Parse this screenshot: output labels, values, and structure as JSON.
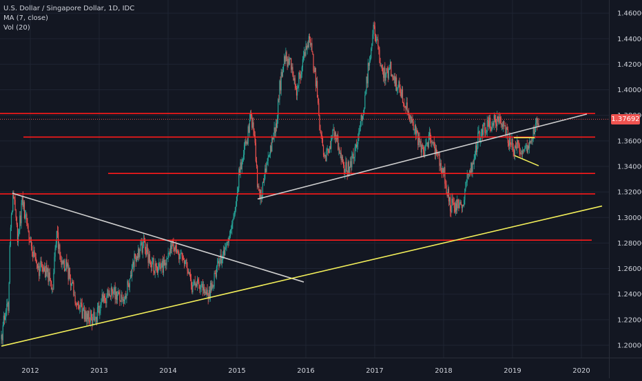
{
  "legend": {
    "symbol": "U.S. Dollar / Singapore Dollar, 1D, IDC",
    "ma": "MA (7, close)",
    "vol": "Vol (20)"
  },
  "colors": {
    "background": "#131722",
    "up": "#26a69a",
    "down": "#ef5350",
    "hline": "#ff1a1a",
    "trend_white": "#d0d0d0",
    "trend_yellow": "#f4f05a",
    "axis_text": "#d1d4dc"
  },
  "chart_data": {
    "type": "candlestick",
    "title": "U.S. Dollar / Singapore Dollar, 1D, IDC",
    "x_ticks": [
      "2012",
      "2013",
      "2014",
      "2015",
      "2016",
      "2017",
      "2018",
      "2019",
      "2020"
    ],
    "y_ticks": [
      "1.20000",
      "1.22000",
      "1.24000",
      "1.26000",
      "1.28000",
      "1.30000",
      "1.32000",
      "1.34000",
      "1.36000",
      "1.38000",
      "1.40000",
      "1.42000",
      "1.44000",
      "1.46000"
    ],
    "xlim": [
      2011.56,
      2020.4
    ],
    "ylim": [
      1.1903,
      1.4703
    ],
    "last_price": "1.37692",
    "price_path": [
      [
        2011.58,
        1.205
      ],
      [
        2011.62,
        1.222
      ],
      [
        2011.68,
        1.232
      ],
      [
        2011.72,
        1.305
      ],
      [
        2011.76,
        1.318
      ],
      [
        2011.82,
        1.282
      ],
      [
        2011.88,
        1.312
      ],
      [
        2011.95,
        1.296
      ],
      [
        2012.02,
        1.275
      ],
      [
        2012.1,
        1.258
      ],
      [
        2012.18,
        1.262
      ],
      [
        2012.25,
        1.255
      ],
      [
        2012.33,
        1.247
      ],
      [
        2012.38,
        1.288
      ],
      [
        2012.45,
        1.268
      ],
      [
        2012.52,
        1.262
      ],
      [
        2012.58,
        1.252
      ],
      [
        2012.65,
        1.236
      ],
      [
        2012.72,
        1.228
      ],
      [
        2012.8,
        1.224
      ],
      [
        2012.88,
        1.222
      ],
      [
        2012.95,
        1.222
      ],
      [
        2013.05,
        1.236
      ],
      [
        2013.12,
        1.24
      ],
      [
        2013.2,
        1.244
      ],
      [
        2013.28,
        1.238
      ],
      [
        2013.35,
        1.232
      ],
      [
        2013.42,
        1.248
      ],
      [
        2013.5,
        1.266
      ],
      [
        2013.58,
        1.274
      ],
      [
        2013.65,
        1.28
      ],
      [
        2013.72,
        1.268
      ],
      [
        2013.8,
        1.262
      ],
      [
        2013.88,
        1.258
      ],
      [
        2014.0,
        1.27
      ],
      [
        2014.05,
        1.282
      ],
      [
        2014.12,
        1.274
      ],
      [
        2014.2,
        1.268
      ],
      [
        2014.28,
        1.26
      ],
      [
        2014.35,
        1.246
      ],
      [
        2014.42,
        1.252
      ],
      [
        2014.5,
        1.246
      ],
      [
        2014.58,
        1.24
      ],
      [
        2014.65,
        1.248
      ],
      [
        2014.72,
        1.264
      ],
      [
        2014.8,
        1.27
      ],
      [
        2014.88,
        1.288
      ],
      [
        2014.95,
        1.3
      ],
      [
        2015.02,
        1.33
      ],
      [
        2015.1,
        1.35
      ],
      [
        2015.15,
        1.362
      ],
      [
        2015.2,
        1.38
      ],
      [
        2015.25,
        1.368
      ],
      [
        2015.3,
        1.322
      ],
      [
        2015.35,
        1.318
      ],
      [
        2015.42,
        1.34
      ],
      [
        2015.5,
        1.358
      ],
      [
        2015.58,
        1.376
      ],
      [
        2015.62,
        1.402
      ],
      [
        2015.7,
        1.425
      ],
      [
        2015.78,
        1.42
      ],
      [
        2015.85,
        1.398
      ],
      [
        2015.92,
        1.412
      ],
      [
        2016.0,
        1.432
      ],
      [
        2016.05,
        1.44
      ],
      [
        2016.1,
        1.424
      ],
      [
        2016.15,
        1.405
      ],
      [
        2016.2,
        1.368
      ],
      [
        2016.28,
        1.345
      ],
      [
        2016.35,
        1.358
      ],
      [
        2016.42,
        1.368
      ],
      [
        2016.48,
        1.356
      ],
      [
        2016.55,
        1.34
      ],
      [
        2016.62,
        1.338
      ],
      [
        2016.7,
        1.352
      ],
      [
        2016.78,
        1.366
      ],
      [
        2016.85,
        1.392
      ],
      [
        2016.92,
        1.424
      ],
      [
        2016.98,
        1.448
      ],
      [
        2017.02,
        1.44
      ],
      [
        2017.08,
        1.418
      ],
      [
        2017.15,
        1.41
      ],
      [
        2017.22,
        1.418
      ],
      [
        2017.3,
        1.405
      ],
      [
        2017.38,
        1.398
      ],
      [
        2017.45,
        1.39
      ],
      [
        2017.52,
        1.38
      ],
      [
        2017.6,
        1.366
      ],
      [
        2017.68,
        1.356
      ],
      [
        2017.72,
        1.35
      ],
      [
        2017.78,
        1.362
      ],
      [
        2017.85,
        1.358
      ],
      [
        2017.92,
        1.348
      ],
      [
        2018.0,
        1.336
      ],
      [
        2018.05,
        1.322
      ],
      [
        2018.1,
        1.31
      ],
      [
        2018.15,
        1.31
      ],
      [
        2018.22,
        1.308
      ],
      [
        2018.28,
        1.312
      ],
      [
        2018.33,
        1.33
      ],
      [
        2018.38,
        1.336
      ],
      [
        2018.45,
        1.348
      ],
      [
        2018.5,
        1.364
      ],
      [
        2018.58,
        1.368
      ],
      [
        2018.62,
        1.372
      ],
      [
        2018.7,
        1.374
      ],
      [
        2018.78,
        1.378
      ],
      [
        2018.85,
        1.376
      ],
      [
        2018.92,
        1.366
      ],
      [
        2018.97,
        1.358
      ],
      [
        2019.02,
        1.352
      ],
      [
        2019.08,
        1.356
      ],
      [
        2019.15,
        1.352
      ],
      [
        2019.22,
        1.354
      ],
      [
        2019.28,
        1.362
      ],
      [
        2019.33,
        1.372
      ],
      [
        2019.38,
        1.3769
      ]
    ],
    "horizontal_levels": [
      {
        "price": 1.3815,
        "from": 2011.56,
        "to": 2020.2
      },
      {
        "price": 1.363,
        "from": 2011.9,
        "to": 2020.2
      },
      {
        "price": 1.3345,
        "from": 2013.13,
        "to": 2020.2
      },
      {
        "price": 1.3185,
        "from": 2011.56,
        "to": 2020.2
      },
      {
        "price": 1.2823,
        "from": 2011.56,
        "to": 2020.15
      }
    ],
    "trend_lines": [
      {
        "color": "white",
        "from": [
          2011.74,
          1.319
        ],
        "to": [
          2015.97,
          1.2495
        ]
      },
      {
        "color": "white",
        "from": [
          2015.3,
          1.3145
        ],
        "to": [
          2020.08,
          1.381
        ]
      },
      {
        "color": "yellow",
        "from": [
          2011.58,
          1.1993
        ],
        "to": [
          2020.3,
          1.309
        ]
      },
      {
        "color": "yellow",
        "from": [
          2019.03,
          1.3485
        ],
        "to": [
          2019.38,
          1.3405
        ]
      },
      {
        "color": "yellow",
        "from": [
          2019.02,
          1.3625
        ],
        "to": [
          2019.32,
          1.3625
        ]
      }
    ]
  }
}
